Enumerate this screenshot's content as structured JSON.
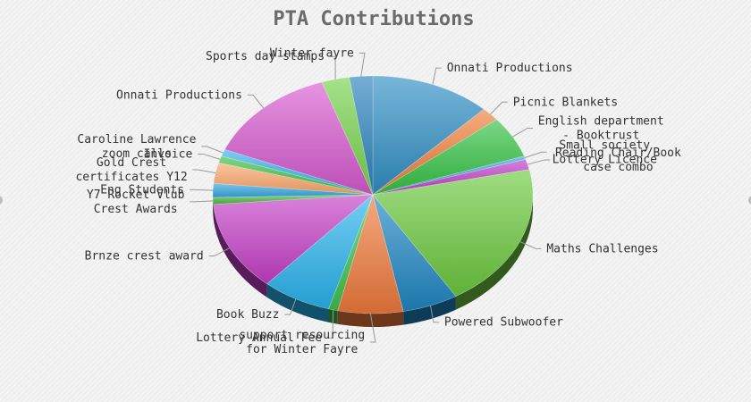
{
  "chart_data": {
    "type": "pie",
    "title": "PTA Contributions",
    "legend": "none",
    "slices": [
      {
        "label": [
          "Onnati Productions"
        ],
        "value": 13,
        "color": "#2f8fc4"
      },
      {
        "label": [
          "Picnic Blankets"
        ],
        "value": 2,
        "color": "#f07f3a"
      },
      {
        "label": [
          "English department",
          "- Booktrust"
        ],
        "value": 6,
        "color": "#34c243"
      },
      {
        "label": [
          "Small society",
          "Lottery Licence"
        ],
        "value": 0.5,
        "color": "#2da3e0"
      },
      {
        "label": [
          "Reading Chair/Book",
          "case combo"
        ],
        "value": 1.5,
        "color": "#bf3fc8"
      },
      {
        "label": [
          "Maths Challenges"
        ],
        "value": 21,
        "color": "#6cc93f"
      },
      {
        "label": [
          "Powered Subwoofer"
        ],
        "value": 6,
        "color": "#1f86c2"
      },
      {
        "label": [
          "support resourcing",
          "for Winter Fayre"
        ],
        "value": 7,
        "color": "#ef7a3c"
      },
      {
        "label": [
          "Lottery Annual Fee"
        ],
        "value": 1,
        "color": "#3fc24d"
      },
      {
        "label": [
          "Book Buzz"
        ],
        "value": 7.5,
        "color": "#29b3ec"
      },
      {
        "label": [
          "Brnze crest award"
        ],
        "value": 13,
        "color": "#c53ec7"
      },
      {
        "label": [
          "Y7 Rocket Vlub",
          "Crest Awards"
        ],
        "value": 1,
        "color": "#4fb846"
      },
      {
        "label": [
          "Eng Students"
        ],
        "value": 2,
        "color": "#34a8e0"
      },
      {
        "label": [
          "Gold Crest",
          "certificates Y12"
        ],
        "value": 3,
        "color": "#fba86c"
      },
      {
        "label": [
          "Invoice"
        ],
        "value": 1,
        "color": "#3ac246"
      },
      {
        "label": [
          "Caroline Lawrence",
          "zoom calls"
        ],
        "value": 1,
        "color": "#35b0ec"
      },
      {
        "label": [
          "Onnati Productions"
        ],
        "value": 14.5,
        "color": "#d75ad0"
      },
      {
        "label": [
          "Sports day stamps"
        ],
        "value": 3,
        "color": "#76d34c"
      },
      {
        "label": [
          "Winter fayre"
        ],
        "value": 2.5,
        "color": "#2b83bd"
      }
    ]
  }
}
